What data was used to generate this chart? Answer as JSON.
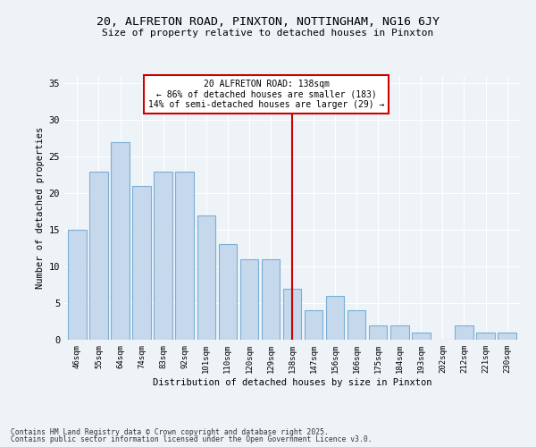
{
  "title1": "20, ALFRETON ROAD, PINXTON, NOTTINGHAM, NG16 6JY",
  "title2": "Size of property relative to detached houses in Pinxton",
  "xlabel": "Distribution of detached houses by size in Pinxton",
  "ylabel": "Number of detached properties",
  "categories": [
    "46sqm",
    "55sqm",
    "64sqm",
    "74sqm",
    "83sqm",
    "92sqm",
    "101sqm",
    "110sqm",
    "120sqm",
    "129sqm",
    "138sqm",
    "147sqm",
    "156sqm",
    "166sqm",
    "175sqm",
    "184sqm",
    "193sqm",
    "202sqm",
    "212sqm",
    "221sqm",
    "230sqm"
  ],
  "values": [
    15,
    23,
    27,
    21,
    23,
    23,
    17,
    13,
    11,
    11,
    7,
    4,
    6,
    4,
    2,
    2,
    1,
    0,
    2,
    1,
    1
  ],
  "bar_color": "#C5D8EC",
  "bar_edge_color": "#7BAFD4",
  "highlight_index": 10,
  "vline_x": 10,
  "vline_color": "#CC0000",
  "annotation_text": "20 ALFRETON ROAD: 138sqm\n← 86% of detached houses are smaller (183)\n14% of semi-detached houses are larger (29) →",
  "annotation_box_color": "#CC0000",
  "ylim": [
    0,
    36
  ],
  "yticks": [
    0,
    5,
    10,
    15,
    20,
    25,
    30,
    35
  ],
  "footer_line1": "Contains HM Land Registry data © Crown copyright and database right 2025.",
  "footer_line2": "Contains public sector information licensed under the Open Government Licence v3.0.",
  "bg_color": "#EEF3F8",
  "grid_color": "#FFFFFF"
}
